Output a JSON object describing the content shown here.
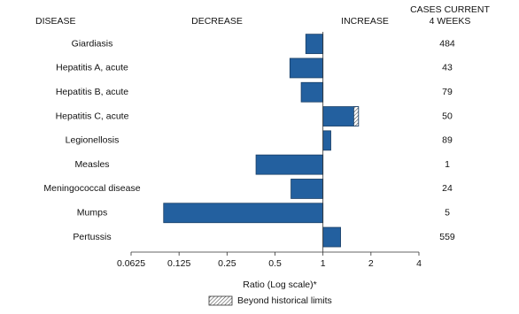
{
  "chart_data": {
    "type": "bar",
    "orientation": "horizontal",
    "log_base": 2,
    "headers": {
      "disease": "DISEASE",
      "decrease": "DECREASE",
      "increase": "INCREASE",
      "cases": [
        "CASES CURRENT",
        "4 WEEKS"
      ]
    },
    "categories": [
      "Giardiasis",
      "Hepatitis A, acute",
      "Hepatitis B, acute",
      "Hepatitis C, acute",
      "Legionellosis",
      "Measles",
      "Meningococcal disease",
      "Mumps",
      "Pertussis"
    ],
    "values": [
      0.78,
      0.62,
      0.73,
      1.67,
      1.12,
      0.38,
      0.63,
      0.1,
      1.29
    ],
    "historical_limits": [
      null,
      null,
      null,
      1.56,
      null,
      null,
      null,
      null,
      null
    ],
    "cases": [
      484,
      43,
      79,
      50,
      89,
      1,
      24,
      5,
      559
    ],
    "color": "#23609f",
    "xlim": [
      0.0625,
      4
    ],
    "xticks": [
      0.0625,
      0.125,
      0.25,
      0.5,
      1,
      2,
      4
    ],
    "xlabel": "Ratio (Log scale)*",
    "legend": "Beyond historical limits"
  }
}
